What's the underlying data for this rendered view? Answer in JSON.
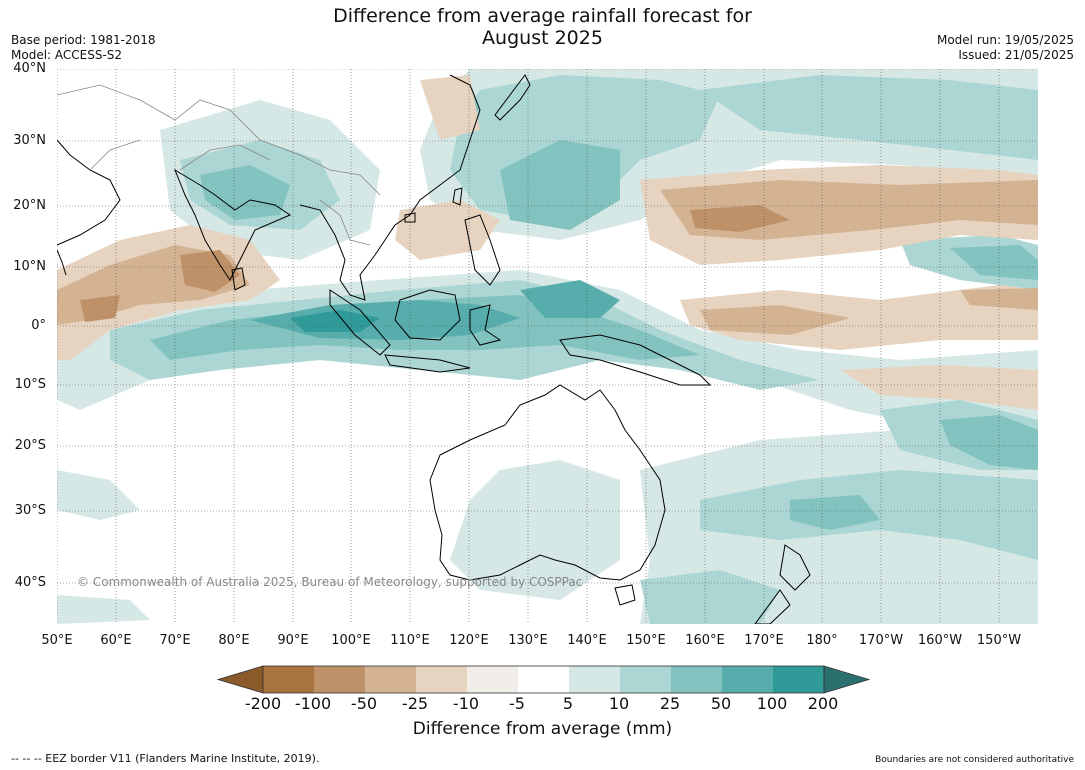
{
  "title_line1": "Difference from average rainfall forecast for",
  "title_line2": "August 2025",
  "meta_left": {
    "base_period": "Base period: 1981-2018",
    "model": "Model: ACCESS-S2"
  },
  "meta_right": {
    "model_run": "Model run: 19/05/2025",
    "issued": "Issued: 21/05/2025"
  },
  "lat_labels": [
    "40°N",
    "30°N",
    "20°N",
    "10°N",
    "0°",
    "10°S",
    "20°S",
    "30°S",
    "40°S"
  ],
  "lon_labels": [
    "50°E",
    "60°E",
    "70°E",
    "80°E",
    "90°E",
    "100°E",
    "110°E",
    "120°E",
    "130°E",
    "140°E",
    "150°E",
    "160°E",
    "170°E",
    "180°",
    "170°W",
    "160°W",
    "150°W"
  ],
  "copyright": "© Commonwealth of Australia 2025, Bureau of Meteorology, supported by COSPPac",
  "colorbar": {
    "ticks": [
      "-200",
      "-100",
      "-50",
      "-25",
      "-10",
      "-5",
      "5",
      "10",
      "25",
      "50",
      "100",
      "200"
    ],
    "colors": [
      "#8a5a2b",
      "#a8733e",
      "#bf9168",
      "#d4b392",
      "#e6d3c0",
      "#f1ede8",
      "#ffffff",
      "#d5e8e6",
      "#acd6d3",
      "#82c3c0",
      "#57adab",
      "#2f9a98",
      "#2b706e"
    ],
    "label": "Difference from average (mm)"
  },
  "footer_left": "--  --  -- EEZ border V11 (Flanders Marine Institute, 2019).",
  "footer_right": "Boundaries are not considered authoritative"
}
